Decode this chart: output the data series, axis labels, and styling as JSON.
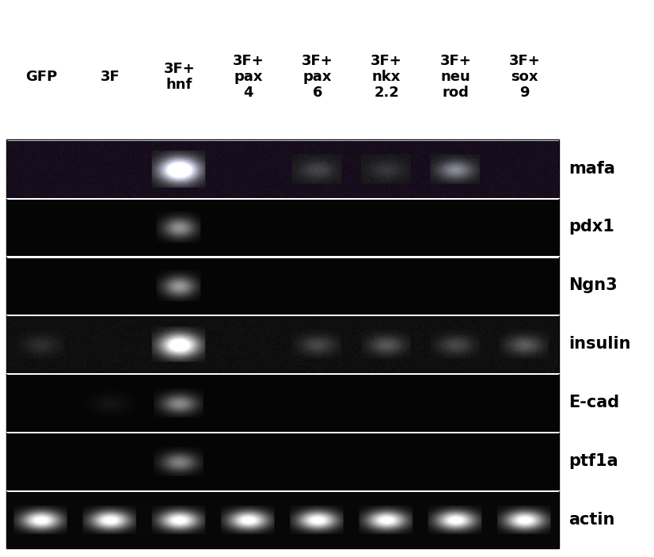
{
  "col_label_texts": [
    [
      "GFP"
    ],
    [
      "3F"
    ],
    [
      "3F+",
      "hnf"
    ],
    [
      "3F+",
      "pax",
      "4"
    ],
    [
      "3F+",
      "pax",
      "6"
    ],
    [
      "3F+",
      "nkx",
      "2.2"
    ],
    [
      "3F+",
      "neu",
      "rod"
    ],
    [
      "3F+",
      "sox",
      "9"
    ]
  ],
  "row_labels": [
    "mafa",
    "pdx1",
    "Ngn3",
    "insulin",
    "E-cad",
    "ptf1a",
    "actin"
  ],
  "n_cols": 8,
  "n_rows": 7,
  "outer_bg": "#ffffff",
  "label_color": "#000000",
  "col_label_fontsize": 13,
  "row_label_fontsize": 15,
  "bands": {
    "mafa": [
      {
        "col": 2,
        "intensity": 1.0
      },
      {
        "col": 4,
        "intensity": 0.18
      },
      {
        "col": 5,
        "intensity": 0.12
      },
      {
        "col": 6,
        "intensity": 0.45
      }
    ],
    "pdx1": [
      {
        "col": 2,
        "intensity": 0.55
      }
    ],
    "Ngn3": [
      {
        "col": 2,
        "intensity": 0.58
      }
    ],
    "insulin": [
      {
        "col": 0,
        "intensity": 0.12
      },
      {
        "col": 2,
        "intensity": 0.92
      },
      {
        "col": 4,
        "intensity": 0.22
      },
      {
        "col": 5,
        "intensity": 0.28
      },
      {
        "col": 6,
        "intensity": 0.22
      },
      {
        "col": 7,
        "intensity": 0.3
      }
    ],
    "E-cad": [
      {
        "col": 1,
        "intensity": 0.06
      },
      {
        "col": 2,
        "intensity": 0.52
      }
    ],
    "ptf1a": [
      {
        "col": 2,
        "intensity": 0.48
      }
    ],
    "actin": [
      {
        "col": 0,
        "intensity": 0.82
      },
      {
        "col": 1,
        "intensity": 0.82
      },
      {
        "col": 2,
        "intensity": 0.82
      },
      {
        "col": 3,
        "intensity": 0.82
      },
      {
        "col": 4,
        "intensity": 0.82
      },
      {
        "col": 5,
        "intensity": 0.82
      },
      {
        "col": 6,
        "intensity": 0.82
      },
      {
        "col": 7,
        "intensity": 0.82
      }
    ]
  },
  "mafa_bg_purple": true,
  "figure_width": 8.26,
  "figure_height": 7.03
}
